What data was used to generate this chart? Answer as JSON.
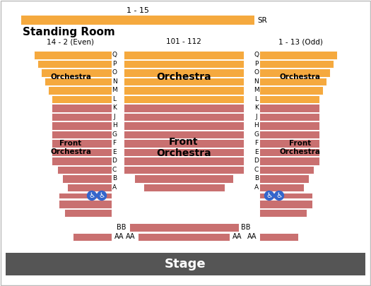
{
  "title": "Stage",
  "standing_room_label": "Standing Room",
  "standing_room_range": "1 - 15",
  "standing_room_tag": "SR",
  "left_section_range": "14 - 2 (Even)",
  "center_section_range": "101 - 112",
  "right_section_range": "1 - 13 (Odd)",
  "orchestra_color": "#F5A93E",
  "front_orchestra_color": "#C97070",
  "stage_color": "#555555",
  "stage_text_color": "#ffffff",
  "row_letters": [
    "Q",
    "P",
    "O",
    "N",
    "M",
    "L",
    "K",
    "J",
    "H",
    "G",
    "F",
    "E",
    "D",
    "C",
    "B",
    "A"
  ],
  "n_orch": 6,
  "n_front": 10,
  "bg_color": "#ffffff"
}
